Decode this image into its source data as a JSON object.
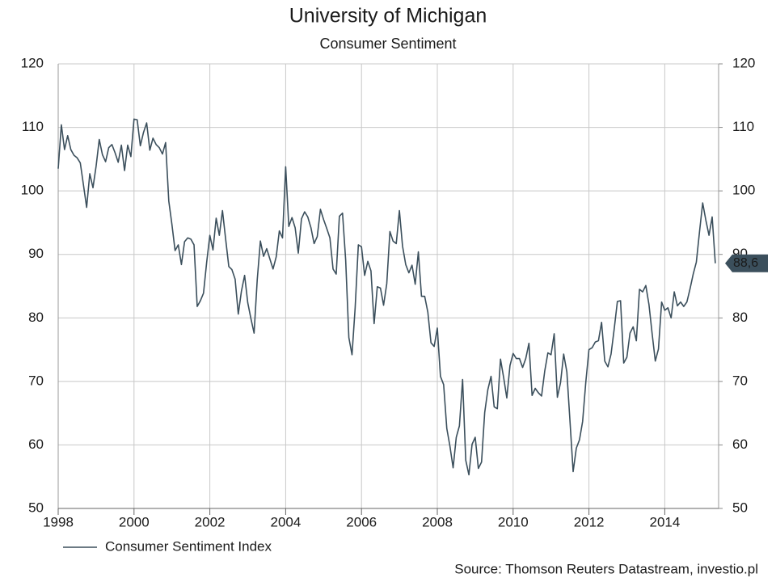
{
  "chart_data": {
    "type": "line",
    "title": "University of Michigan",
    "subtitle": "Consumer Sentiment",
    "source": "Source: Thomson Reuters Datastream, investio.pl",
    "xlim": [
      1998,
      2015.42
    ],
    "xticks": [
      1998,
      2000,
      2002,
      2004,
      2006,
      2008,
      2010,
      2012,
      2014
    ],
    "ylim": [
      50,
      120
    ],
    "yticks": [
      50,
      60,
      70,
      80,
      90,
      100,
      110,
      120
    ],
    "y2lim": [
      50,
      120
    ],
    "y2ticks": [
      50,
      60,
      70,
      80,
      90,
      100,
      110,
      120
    ],
    "grid": true,
    "legend": "bottom-left",
    "x": [
      1998,
      1998.083,
      1998.167,
      1998.25,
      1998.333,
      1998.417,
      1998.5,
      1998.583,
      1998.667,
      1998.75,
      1998.833,
      1998.917,
      1999,
      1999.083,
      1999.167,
      1999.25,
      1999.333,
      1999.417,
      1999.5,
      1999.583,
      1999.667,
      1999.75,
      1999.833,
      1999.917,
      2000,
      2000.083,
      2000.167,
      2000.25,
      2000.333,
      2000.417,
      2000.5,
      2000.583,
      2000.667,
      2000.75,
      2000.833,
      2000.917,
      2001,
      2001.083,
      2001.167,
      2001.25,
      2001.333,
      2001.417,
      2001.5,
      2001.583,
      2001.667,
      2001.75,
      2001.833,
      2001.917,
      2002,
      2002.083,
      2002.167,
      2002.25,
      2002.333,
      2002.417,
      2002.5,
      2002.583,
      2002.667,
      2002.75,
      2002.833,
      2002.917,
      2003,
      2003.083,
      2003.167,
      2003.25,
      2003.333,
      2003.417,
      2003.5,
      2003.583,
      2003.667,
      2003.75,
      2003.833,
      2003.917,
      2004,
      2004.083,
      2004.167,
      2004.25,
      2004.333,
      2004.417,
      2004.5,
      2004.583,
      2004.667,
      2004.75,
      2004.833,
      2004.917,
      2005,
      2005.083,
      2005.167,
      2005.25,
      2005.333,
      2005.417,
      2005.5,
      2005.583,
      2005.667,
      2005.75,
      2005.833,
      2005.917,
      2006,
      2006.083,
      2006.167,
      2006.25,
      2006.333,
      2006.417,
      2006.5,
      2006.583,
      2006.667,
      2006.75,
      2006.833,
      2006.917,
      2007,
      2007.083,
      2007.167,
      2007.25,
      2007.333,
      2007.417,
      2007.5,
      2007.583,
      2007.667,
      2007.75,
      2007.833,
      2007.917,
      2008,
      2008.083,
      2008.167,
      2008.25,
      2008.333,
      2008.417,
      2008.5,
      2008.583,
      2008.667,
      2008.75,
      2008.833,
      2008.917,
      2009,
      2009.083,
      2009.167,
      2009.25,
      2009.333,
      2009.417,
      2009.5,
      2009.583,
      2009.667,
      2009.75,
      2009.833,
      2009.917,
      2010,
      2010.083,
      2010.167,
      2010.25,
      2010.333,
      2010.417,
      2010.5,
      2010.583,
      2010.667,
      2010.75,
      2010.833,
      2010.917,
      2011,
      2011.083,
      2011.167,
      2011.25,
      2011.333,
      2011.417,
      2011.5,
      2011.583,
      2011.667,
      2011.75,
      2011.833,
      2011.917,
      2012,
      2012.083,
      2012.167,
      2012.25,
      2012.333,
      2012.417,
      2012.5,
      2012.583,
      2012.667,
      2012.75,
      2012.833,
      2012.917,
      2013,
      2013.083,
      2013.167,
      2013.25,
      2013.333,
      2013.417,
      2013.5,
      2013.583,
      2013.667,
      2013.75,
      2013.833,
      2013.917,
      2014,
      2014.083,
      2014.167,
      2014.25,
      2014.333,
      2014.417,
      2014.5,
      2014.583,
      2014.667,
      2014.75,
      2014.833,
      2014.917,
      2015,
      2015.083,
      2015.167,
      2015.25,
      2015.333
    ],
    "series": [
      {
        "name": "Consumer Sentiment Index",
        "color": "#3b4f5c",
        "last_value_label": "88,6",
        "values": [
          103.5,
          110.4,
          106.5,
          108.7,
          106.5,
          105.6,
          105.2,
          104.4,
          100.9,
          97.4,
          102.7,
          100.5,
          103.9,
          108.1,
          105.7,
          104.6,
          106.8,
          107.3,
          106.0,
          104.5,
          107.2,
          103.2,
          107.2,
          105.4,
          111.3,
          111.2,
          107.1,
          109.2,
          110.7,
          106.4,
          108.3,
          107.3,
          106.8,
          105.8,
          107.6,
          98.4,
          94.7,
          90.6,
          91.5,
          88.4,
          92.0,
          92.6,
          92.4,
          91.5,
          81.8,
          82.7,
          83.9,
          88.8,
          93.0,
          90.7,
          95.7,
          93.0,
          96.9,
          92.4,
          88.1,
          87.6,
          86.1,
          80.6,
          84.2,
          86.7,
          82.4,
          79.9,
          77.6,
          86.0,
          92.1,
          89.7,
          90.9,
          89.3,
          87.7,
          89.6,
          93.7,
          92.6,
          103.8,
          94.4,
          95.8,
          94.2,
          90.2,
          95.6,
          96.7,
          95.9,
          94.2,
          91.7,
          92.8,
          97.1,
          95.5,
          94.1,
          92.6,
          87.7,
          86.9,
          96.0,
          96.5,
          89.1,
          76.9,
          74.2,
          81.6,
          91.5,
          91.2,
          86.7,
          88.9,
          87.4,
          79.1,
          84.9,
          84.7,
          82.0,
          85.4,
          93.6,
          92.1,
          91.7,
          96.9,
          91.3,
          88.4,
          87.1,
          88.3,
          85.3,
          90.4,
          83.4,
          83.4,
          80.9,
          76.1,
          75.5,
          78.4,
          70.8,
          69.5,
          62.6,
          59.8,
          56.4,
          61.2,
          63.0,
          70.3,
          57.6,
          55.3,
          60.1,
          61.2,
          56.3,
          57.3,
          65.1,
          68.7,
          70.8,
          66.0,
          65.7,
          73.5,
          70.6,
          67.4,
          72.5,
          74.4,
          73.6,
          73.6,
          72.2,
          73.6,
          76.0,
          67.8,
          68.9,
          68.2,
          67.7,
          71.6,
          74.5,
          74.2,
          77.5,
          67.5,
          69.8,
          74.3,
          71.5,
          63.7,
          55.8,
          59.5,
          60.8,
          63.7,
          69.9,
          75.0,
          75.3,
          76.2,
          76.4,
          79.3,
          73.2,
          72.3,
          74.3,
          78.3,
          82.6,
          82.7,
          72.9,
          73.8,
          77.6,
          78.6,
          76.4,
          84.5,
          84.1,
          85.1,
          82.1,
          77.5,
          73.2,
          75.1,
          82.5,
          81.2,
          81.6,
          80.0,
          84.1,
          81.9,
          82.5,
          81.8,
          82.5,
          84.6,
          86.9,
          88.8,
          93.6,
          98.1,
          95.4,
          93.0,
          95.9,
          88.6
        ]
      }
    ]
  }
}
